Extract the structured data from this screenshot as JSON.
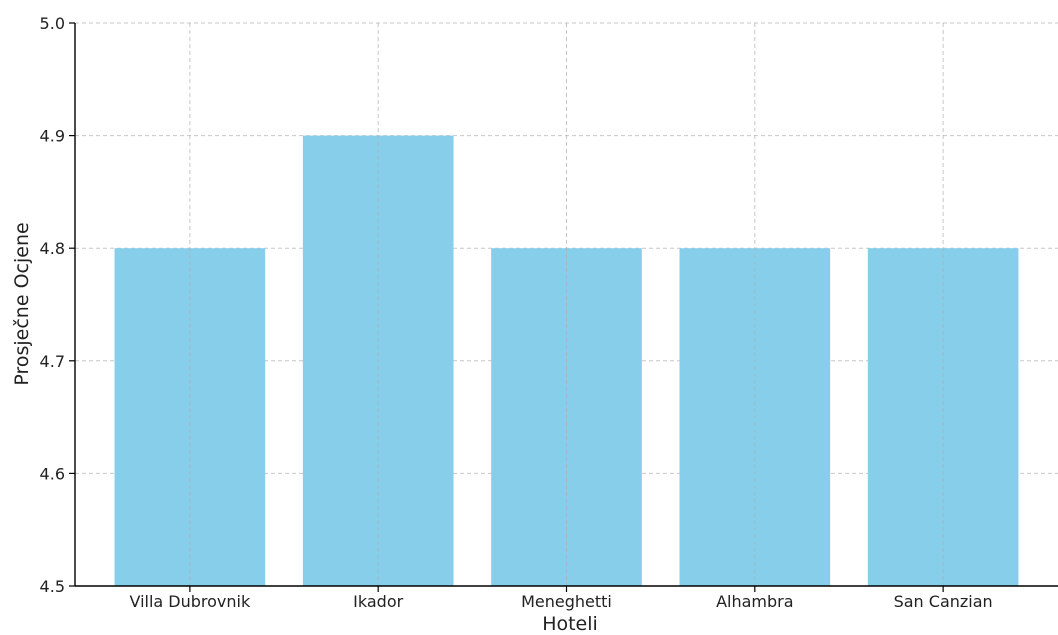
{
  "chart_data": {
    "type": "bar",
    "title": "",
    "xlabel": "Hoteli",
    "ylabel": "Prosječne Ocjene",
    "categories": [
      "Villa Dubrovnik",
      "Ikador",
      "Meneghetti",
      "Alhambra",
      "San Canzian"
    ],
    "values": [
      4.8,
      4.9,
      4.8,
      4.8,
      4.8
    ],
    "ylim": [
      4.5,
      5.0
    ],
    "yticks": [
      "4.5",
      "4.6",
      "4.7",
      "4.8",
      "4.9",
      "5.0"
    ],
    "grid": true,
    "bar_color": "#87CEEB"
  }
}
